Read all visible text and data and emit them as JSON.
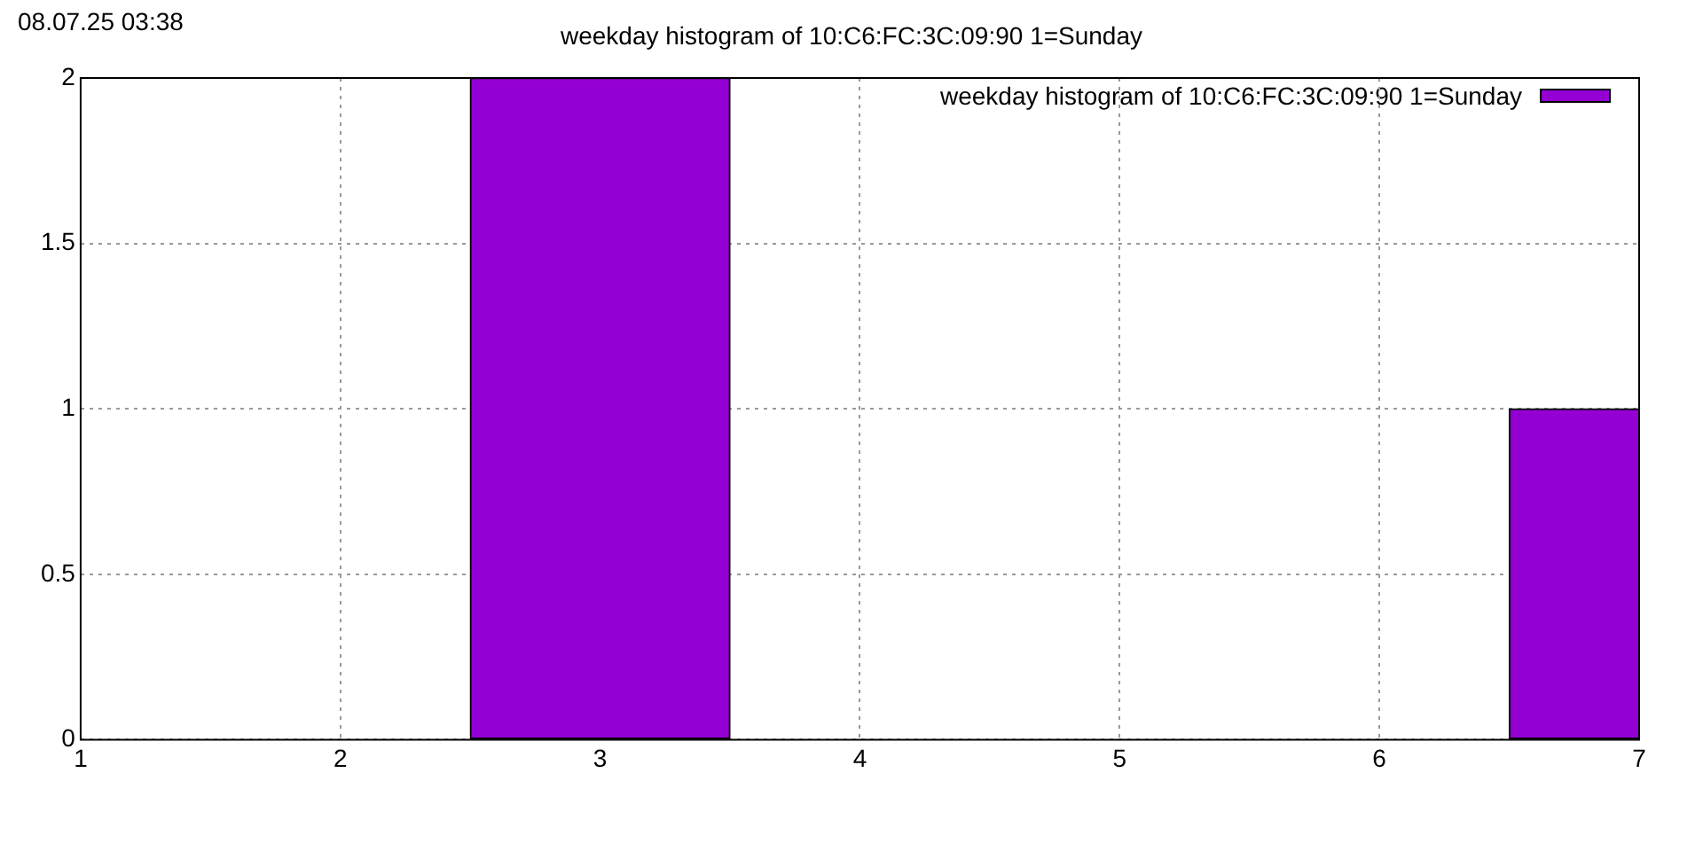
{
  "chart_data": {
    "type": "bar",
    "title": "weekday histogram of 10:C6:FC:3C:09:90 1=Sunday",
    "annotations": [
      "08.07.25 03:38"
    ],
    "x": [
      1,
      2,
      3,
      4,
      5,
      6,
      7
    ],
    "series": [
      {
        "name": "weekday histogram of 10:C6:FC:3C:09:90 1=Sunday",
        "color": "#9400d3",
        "values": [
          0,
          0,
          2,
          0,
          0,
          0,
          1
        ]
      }
    ],
    "xlim": [
      1,
      7
    ],
    "xticks": [
      1,
      2,
      3,
      4,
      5,
      6,
      7
    ],
    "ylim": [
      0,
      2
    ],
    "yticks": [
      0,
      0.5,
      1,
      1.5,
      2
    ],
    "grid": true,
    "legend": "top right"
  }
}
